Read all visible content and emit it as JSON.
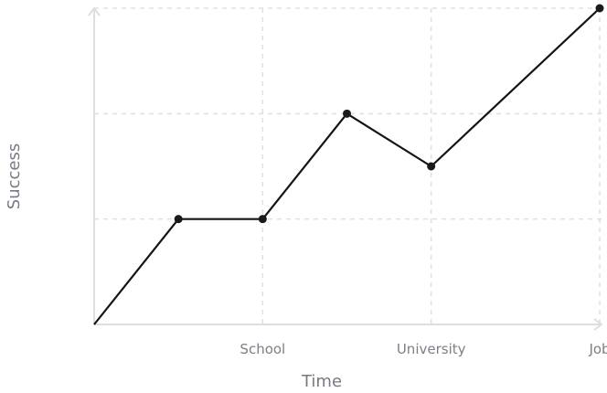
{
  "chart_data": {
    "type": "line",
    "title": "",
    "xlabel": "Time",
    "ylabel": "Success",
    "xlim": [
      0,
      6
    ],
    "ylim": [
      0,
      3
    ],
    "x_ticks": [
      {
        "value": 2,
        "label": "School"
      },
      {
        "value": 4,
        "label": "University"
      },
      {
        "value": 6,
        "label": "Job"
      }
    ],
    "grid": true,
    "x": [
      0,
      1,
      2,
      3,
      4,
      6
    ],
    "series": [
      {
        "values": [
          0,
          1,
          1,
          2,
          1.5,
          3
        ]
      }
    ],
    "colors": {
      "line": "#141414",
      "points": "#1a1a1a",
      "grid": "#e0e0e0",
      "axes": "#dedede"
    }
  }
}
